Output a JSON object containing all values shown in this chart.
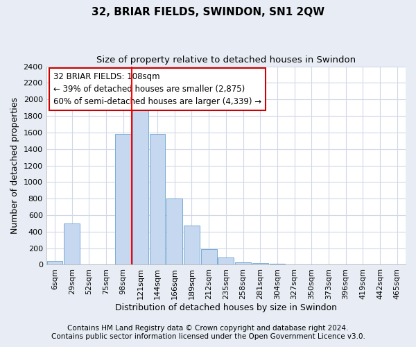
{
  "title": "32, BRIAR FIELDS, SWINDON, SN1 2QW",
  "subtitle": "Size of property relative to detached houses in Swindon",
  "xlabel": "Distribution of detached houses by size in Swindon",
  "ylabel": "Number of detached properties",
  "categories": [
    "6sqm",
    "29sqm",
    "52sqm",
    "75sqm",
    "98sqm",
    "121sqm",
    "144sqm",
    "166sqm",
    "189sqm",
    "212sqm",
    "235sqm",
    "258sqm",
    "281sqm",
    "304sqm",
    "327sqm",
    "350sqm",
    "373sqm",
    "396sqm",
    "419sqm",
    "442sqm",
    "465sqm"
  ],
  "values": [
    50,
    500,
    0,
    0,
    1580,
    1950,
    1580,
    800,
    475,
    190,
    90,
    30,
    20,
    10,
    0,
    0,
    0,
    0,
    0,
    0,
    0
  ],
  "bar_color": "#c5d8f0",
  "bar_edge_color": "#7aabd4",
  "red_line_index": 5,
  "annotation_text": "32 BRIAR FIELDS: 108sqm\n← 39% of detached houses are smaller (2,875)\n60% of semi-detached houses are larger (4,339) →",
  "annotation_box_color": "#ffffff",
  "annotation_box_edge": "#cc0000",
  "ylim": [
    0,
    2400
  ],
  "yticks": [
    0,
    200,
    400,
    600,
    800,
    1000,
    1200,
    1400,
    1600,
    1800,
    2000,
    2200,
    2400
  ],
  "footer_line1": "Contains HM Land Registry data © Crown copyright and database right 2024.",
  "footer_line2": "Contains public sector information licensed under the Open Government Licence v3.0.",
  "page_bg_color": "#e8edf5",
  "plot_bg_color": "#ffffff",
  "grid_color": "#d0d8e8",
  "title_fontsize": 11,
  "subtitle_fontsize": 9.5,
  "axis_label_fontsize": 9,
  "tick_fontsize": 8,
  "annotation_fontsize": 8.5,
  "footer_fontsize": 7.5
}
